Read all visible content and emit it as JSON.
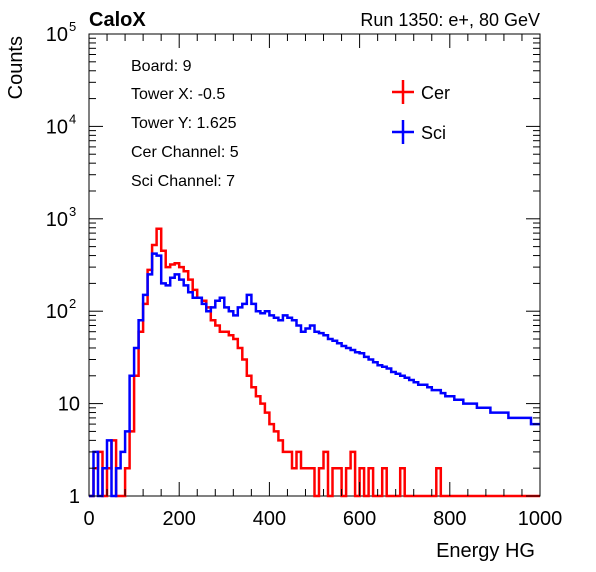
{
  "header": {
    "left_title": "CaloX",
    "right_title": "Run 1350: e+, 80 GeV"
  },
  "info_box": [
    "Board: 9",
    "Tower X: -0.5",
    "Tower Y: 1.625",
    "Cer Channel: 5",
    "Sci Channel: 7"
  ],
  "legend": [
    {
      "label": "Cer",
      "color": "#ff0000"
    },
    {
      "label": "Sci",
      "color": "#0000ff"
    }
  ],
  "chart_data": {
    "type": "line",
    "xlabel": "Energy HG",
    "ylabel": "Counts",
    "xlim": [
      0,
      1000
    ],
    "ylim": [
      1,
      100000
    ],
    "y_scale": "log",
    "x_ticks": [
      0,
      200,
      400,
      600,
      800,
      1000
    ],
    "y_ticks": [
      {
        "value": 1,
        "label": "1",
        "exp": ""
      },
      {
        "value": 10,
        "label": "10",
        "exp": ""
      },
      {
        "value": 100,
        "label": "10",
        "exp": "2"
      },
      {
        "value": 1000,
        "label": "10",
        "exp": "3"
      },
      {
        "value": 10000,
        "label": "10",
        "exp": "4"
      },
      {
        "value": 100000,
        "label": "10",
        "exp": "5"
      }
    ],
    "grid": false,
    "legend_position": "top-right",
    "series": [
      {
        "name": "Cer",
        "color": "#ff0000",
        "x": [
          0,
          10,
          20,
          30,
          40,
          50,
          60,
          70,
          80,
          90,
          100,
          110,
          120,
          130,
          140,
          150,
          160,
          170,
          180,
          190,
          200,
          210,
          220,
          230,
          240,
          250,
          260,
          270,
          280,
          290,
          300,
          310,
          320,
          330,
          340,
          350,
          360,
          370,
          380,
          390,
          400,
          410,
          420,
          430,
          440,
          450,
          460,
          470,
          480,
          490,
          500,
          510,
          520,
          530,
          540,
          550,
          560,
          570,
          580,
          590,
          600,
          610,
          620,
          630,
          640,
          650,
          660,
          670,
          680,
          690,
          700,
          710,
          720,
          730,
          740,
          750,
          760,
          770,
          780,
          790,
          800,
          810,
          820,
          830,
          840,
          850,
          860,
          870,
          880,
          890,
          900,
          910,
          920,
          930,
          940,
          950,
          960,
          970,
          980,
          990
        ],
        "values": [
          1,
          2,
          3,
          1,
          2,
          4,
          1,
          1,
          2,
          5,
          20,
          60,
          120,
          280,
          520,
          780,
          450,
          300,
          320,
          330,
          300,
          270,
          220,
          170,
          140,
          130,
          110,
          80,
          70,
          60,
          60,
          55,
          50,
          40,
          30,
          20,
          15,
          12,
          10,
          8,
          6,
          5,
          4,
          3,
          3,
          2,
          3,
          2,
          2,
          2,
          1,
          2,
          3,
          1,
          2,
          2,
          1,
          2,
          3,
          1,
          2,
          1,
          2,
          1,
          1,
          2,
          1,
          1,
          1,
          2,
          1,
          1,
          1,
          1,
          1,
          1,
          1,
          2,
          1,
          1,
          1,
          1,
          1,
          1,
          1,
          1,
          1,
          1,
          1,
          1,
          1,
          1,
          1,
          1,
          1,
          1,
          1,
          1,
          1,
          1
        ]
      },
      {
        "name": "Sci",
        "color": "#0000ff",
        "x": [
          0,
          10,
          20,
          30,
          40,
          50,
          60,
          70,
          80,
          90,
          100,
          110,
          120,
          130,
          140,
          150,
          160,
          170,
          180,
          190,
          200,
          210,
          220,
          230,
          240,
          250,
          260,
          270,
          280,
          290,
          300,
          310,
          320,
          330,
          340,
          350,
          360,
          370,
          380,
          390,
          400,
          410,
          420,
          430,
          440,
          450,
          460,
          470,
          480,
          490,
          500,
          510,
          520,
          530,
          540,
          550,
          560,
          570,
          580,
          590,
          600,
          610,
          620,
          630,
          640,
          650,
          660,
          670,
          680,
          690,
          700,
          710,
          720,
          730,
          740,
          750,
          760,
          770,
          780,
          790,
          800,
          810,
          820,
          830,
          840,
          850,
          860,
          870,
          880,
          890,
          900,
          910,
          920,
          930,
          940,
          950,
          960,
          970,
          980,
          990
        ],
        "values": [
          1,
          3,
          1,
          2,
          4,
          1,
          2,
          3,
          5,
          20,
          40,
          80,
          150,
          250,
          420,
          400,
          200,
          190,
          230,
          250,
          220,
          190,
          160,
          140,
          140,
          120,
          100,
          110,
          130,
          140,
          110,
          100,
          90,
          110,
          120,
          150,
          120,
          100,
          95,
          100,
          90,
          85,
          80,
          90,
          85,
          80,
          70,
          60,
          65,
          70,
          60,
          58,
          55,
          50,
          48,
          45,
          42,
          40,
          38,
          36,
          35,
          32,
          30,
          28,
          26,
          25,
          24,
          22,
          21,
          20,
          19,
          18,
          17,
          16,
          16,
          15,
          14,
          14,
          13,
          12,
          12,
          11,
          11,
          10,
          10,
          10,
          9,
          9,
          9,
          8,
          8,
          8,
          8,
          7,
          7,
          7,
          7,
          7,
          6,
          6
        ]
      }
    ]
  }
}
